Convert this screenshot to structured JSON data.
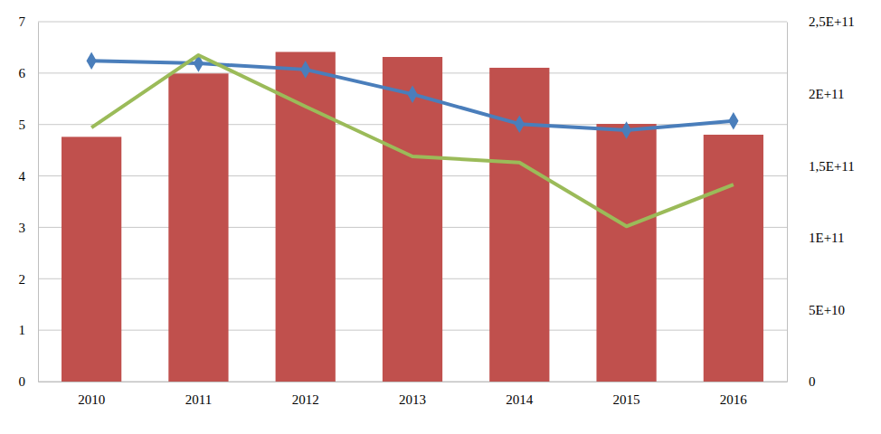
{
  "chart_data": {
    "type": "bar",
    "categories": [
      "2010",
      "2011",
      "2012",
      "2013",
      "2014",
      "2015",
      "2016"
    ],
    "series": [
      {
        "type": "bar",
        "color": "#c0504d",
        "axis": "y2",
        "values": [
          170000000000,
          214000000000,
          229000000000,
          225500000000,
          218000000000,
          179000000000,
          171500000000
        ]
      },
      {
        "type": "line",
        "color": "#4a7ebb",
        "marker": "diamond",
        "line_style": "solid",
        "values": [
          6.24,
          6.19,
          6.07,
          5.59,
          5.01,
          4.89,
          5.07
        ]
      },
      {
        "type": "line",
        "color": "#9bbb59",
        "marker": "none",
        "line_style": "solid",
        "values": [
          4.94,
          6.35,
          5.35,
          4.38,
          4.26,
          3.02,
          3.83
        ]
      }
    ],
    "ylim": [
      0,
      7
    ],
    "yticks": [
      0,
      1,
      2,
      3,
      4,
      5,
      6,
      7
    ],
    "y2lim": [
      0,
      250000000000
    ],
    "y2ticks": [
      0,
      {
        "value": 50000000000,
        "label": "5E+10"
      },
      {
        "value": 100000000000,
        "label": "1E+11"
      },
      {
        "value": 150000000000,
        "label": "1,5E+11"
      },
      {
        "value": 200000000000,
        "label": "2E+11"
      },
      {
        "value": 250000000000,
        "label": "2,5E+11"
      }
    ],
    "grid": true
  }
}
